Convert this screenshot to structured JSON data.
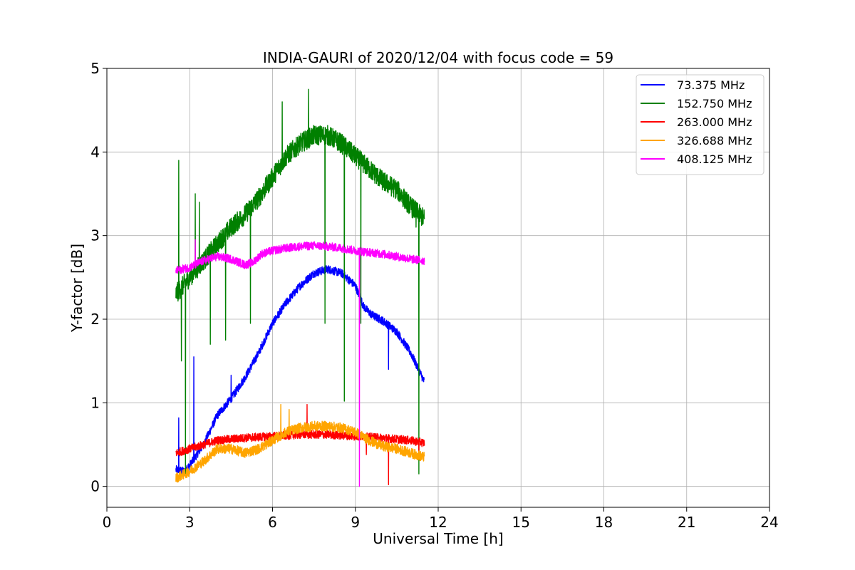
{
  "chart_data": {
    "type": "line",
    "title": "INDIA-GAURI of 2020/12/04 with focus code = 59",
    "xlabel": "Universal Time [h]",
    "ylabel": "Y-factor [dB]",
    "xlim": [
      0,
      24
    ],
    "ylim": [
      -0.25,
      5.0
    ],
    "xticks": [
      0,
      3,
      6,
      9,
      12,
      15,
      18,
      21,
      24
    ],
    "yticks": [
      0,
      1,
      2,
      3,
      4,
      5
    ],
    "xtick_labels": [
      "0",
      "3",
      "6",
      "9",
      "12",
      "15",
      "18",
      "21",
      "24"
    ],
    "ytick_labels": [
      "0",
      "1",
      "2",
      "3",
      "4",
      "5"
    ],
    "grid": true,
    "legend_position": "top-right",
    "series": [
      {
        "name": " 73.375 MHz",
        "color": "#0000ff",
        "noise": 0.05,
        "x": [
          2.5,
          2.8,
          3.0,
          3.5,
          4.0,
          4.5,
          5.0,
          5.5,
          6.0,
          6.5,
          7.0,
          7.5,
          8.0,
          8.5,
          9.0,
          9.3,
          9.6,
          10.0,
          10.5,
          11.0,
          11.5
        ],
        "y": [
          0.2,
          0.18,
          0.25,
          0.5,
          0.85,
          1.05,
          1.3,
          1.6,
          1.95,
          2.2,
          2.4,
          2.55,
          2.6,
          2.55,
          2.4,
          2.15,
          2.05,
          1.98,
          1.85,
          1.6,
          1.25
        ],
        "spikes": [
          [
            2.6,
            0.82
          ],
          [
            3.15,
            1.55
          ],
          [
            4.5,
            1.33
          ],
          [
            10.2,
            1.4
          ]
        ]
      },
      {
        "name": "152.750 MHz",
        "color": "#008000",
        "noise": 0.12,
        "x": [
          2.5,
          3.0,
          3.5,
          4.0,
          4.5,
          5.0,
          5.5,
          6.0,
          6.5,
          7.0,
          7.5,
          8.0,
          8.5,
          9.0,
          9.5,
          10.0,
          10.5,
          11.0,
          11.5
        ],
        "y": [
          2.3,
          2.5,
          2.7,
          2.9,
          3.1,
          3.25,
          3.45,
          3.7,
          3.95,
          4.1,
          4.2,
          4.2,
          4.1,
          3.95,
          3.8,
          3.65,
          3.55,
          3.35,
          3.2
        ],
        "spikes": [
          [
            2.6,
            3.9
          ],
          [
            2.7,
            1.5
          ],
          [
            3.2,
            3.5
          ],
          [
            3.35,
            3.4
          ],
          [
            2.85,
            0.15
          ],
          [
            3.75,
            1.7
          ],
          [
            4.3,
            1.75
          ],
          [
            5.2,
            1.95
          ],
          [
            6.35,
            4.6
          ],
          [
            7.3,
            4.75
          ],
          [
            7.9,
            1.95
          ],
          [
            8.6,
            1.02
          ],
          [
            9.2,
            1.95
          ],
          [
            11.3,
            0.15
          ],
          [
            11.2,
            3.1
          ]
        ]
      },
      {
        "name": "263.000 MHz",
        "color": "#ff0000",
        "noise": 0.05,
        "x": [
          2.5,
          3.0,
          4.0,
          5.0,
          6.0,
          7.0,
          8.0,
          9.0,
          10.0,
          11.0,
          11.5
        ],
        "y": [
          0.4,
          0.45,
          0.55,
          0.58,
          0.6,
          0.62,
          0.62,
          0.6,
          0.58,
          0.55,
          0.52
        ],
        "spikes": [
          [
            7.25,
            0.98
          ],
          [
            9.4,
            0.38
          ],
          [
            10.2,
            0.02
          ],
          [
            11.3,
            0.33
          ]
        ]
      },
      {
        "name": "326.688 MHz",
        "color": "#ffa500",
        "noise": 0.06,
        "x": [
          2.5,
          3.0,
          3.5,
          4.0,
          4.5,
          5.0,
          5.5,
          6.0,
          6.5,
          7.0,
          7.5,
          8.0,
          8.5,
          9.0,
          9.5,
          10.0,
          10.5,
          11.0,
          11.5
        ],
        "y": [
          0.1,
          0.18,
          0.3,
          0.45,
          0.45,
          0.4,
          0.45,
          0.55,
          0.65,
          0.7,
          0.72,
          0.72,
          0.7,
          0.65,
          0.55,
          0.48,
          0.45,
          0.4,
          0.35
        ],
        "spikes": [
          [
            6.3,
            0.98
          ],
          [
            6.6,
            0.92
          ]
        ]
      },
      {
        "name": "408.125 MHz",
        "color": "#ff00ff",
        "noise": 0.05,
        "x": [
          2.5,
          3.0,
          3.5,
          4.0,
          4.5,
          5.0,
          5.3,
          5.6,
          6.0,
          6.5,
          7.0,
          7.5,
          8.0,
          8.5,
          9.0,
          9.5,
          10.0,
          10.5,
          11.0,
          11.5
        ],
        "y": [
          2.58,
          2.62,
          2.7,
          2.75,
          2.72,
          2.65,
          2.68,
          2.78,
          2.82,
          2.85,
          2.87,
          2.88,
          2.87,
          2.85,
          2.82,
          2.8,
          2.78,
          2.75,
          2.72,
          2.7
        ],
        "spikes": [
          [
            9.15,
            0.0
          ],
          [
            3.2,
            2.95
          ]
        ]
      }
    ]
  }
}
